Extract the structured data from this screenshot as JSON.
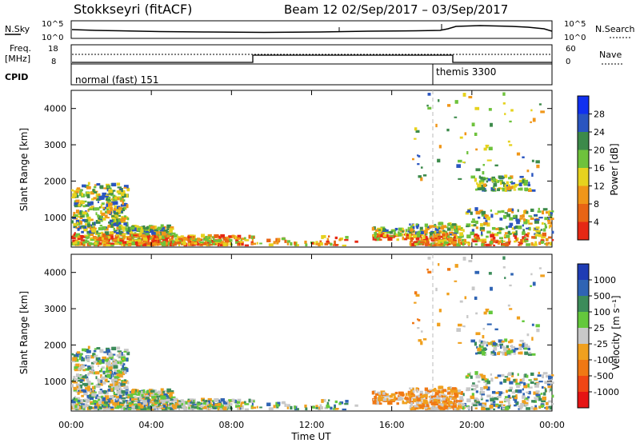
{
  "header": {
    "station": "Stokkseyri (fitACF)",
    "beam_dates": "Beam 12  02/Sep/2017 – 03/Sep/2017"
  },
  "panels": {
    "nsky_label": "N.Sky",
    "nsky_ticks": [
      "10^5",
      "10^0"
    ],
    "nsearch_label": "N.Search",
    "nsearch_ticks": [
      "10^5",
      "10^0"
    ],
    "freq_label": "Freq.",
    "freq_unit": "[MHz]",
    "freq_ticks": [
      "18",
      "8"
    ],
    "nave_label": "Nave",
    "nave_ticks": [
      "60",
      "0"
    ],
    "cpid_label": "CPID",
    "cpid_left": "normal (fast) 151",
    "cpid_right": "themis 3300"
  },
  "chart_data": [
    {
      "type": "heatmap",
      "name": "power",
      "ylabel": "Slant Range [km]",
      "yticks": [
        "1000",
        "2000",
        "3000",
        "4000"
      ],
      "ylim": [
        180,
        4500
      ],
      "colorbar_label": "Power [dB]",
      "colorbar_ticks": [
        "4",
        "8",
        "12",
        "16",
        "20",
        "24",
        "28"
      ],
      "colorbar_colors": [
        "#1030f0",
        "#2a55c0",
        "#3c8a4a",
        "#6ec23c",
        "#e6d21e",
        "#f09618",
        "#e86414",
        "#e62814"
      ]
    },
    {
      "type": "heatmap",
      "name": "velocity",
      "ylabel": "Slant Range [km]",
      "yticks": [
        "1000",
        "2000",
        "3000",
        "4000"
      ],
      "ylim": [
        180,
        4500
      ],
      "xlabel": "Time UT",
      "xticks": [
        "00:00",
        "04:00",
        "08:00",
        "12:00",
        "16:00",
        "20:00",
        "00:00"
      ],
      "colorbar_label": "Velocity [m s⁻¹]",
      "colorbar_ticks": [
        "1000",
        "500",
        "100",
        "25",
        "-25",
        "-100",
        "-500",
        "-1000"
      ],
      "colorbar_colors": [
        "#1e3cb4",
        "#2f64b4",
        "#3c8c5a",
        "#64c83c",
        "#c8c8c8",
        "#f0a01e",
        "#f07814",
        "#f04614",
        "#e61414"
      ]
    }
  ]
}
